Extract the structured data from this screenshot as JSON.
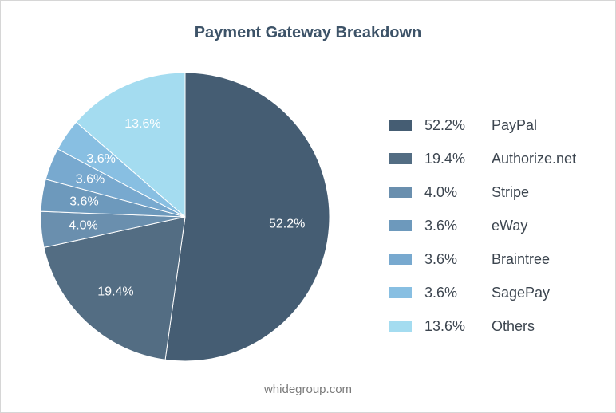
{
  "chart_data": {
    "type": "pie",
    "title": "Payment Gateway Breakdown",
    "start_angle_deg": 0,
    "direction": "clockwise",
    "slices": [
      {
        "name": "PayPal",
        "value": 52.2,
        "label": "52.2%",
        "color": "#455d73"
      },
      {
        "name": "Authorize.net",
        "value": 19.4,
        "label": "19.4%",
        "color": "#536d83"
      },
      {
        "name": "Stripe",
        "value": 4.0,
        "label": "4.0%",
        "color": "#6a8fae"
      },
      {
        "name": "eWay",
        "value": 3.6,
        "label": "3.6%",
        "color": "#6d99bc"
      },
      {
        "name": "Braintree",
        "value": 3.6,
        "label": "3.6%",
        "color": "#78a9cf"
      },
      {
        "name": "SagePay",
        "value": 3.6,
        "label": "3.6%",
        "color": "#88bfe2"
      },
      {
        "name": "Others",
        "value": 13.6,
        "label": "13.6%",
        "color": "#a4dcf0"
      }
    ],
    "legend_position": "right"
  },
  "source": "whidegroup.com"
}
